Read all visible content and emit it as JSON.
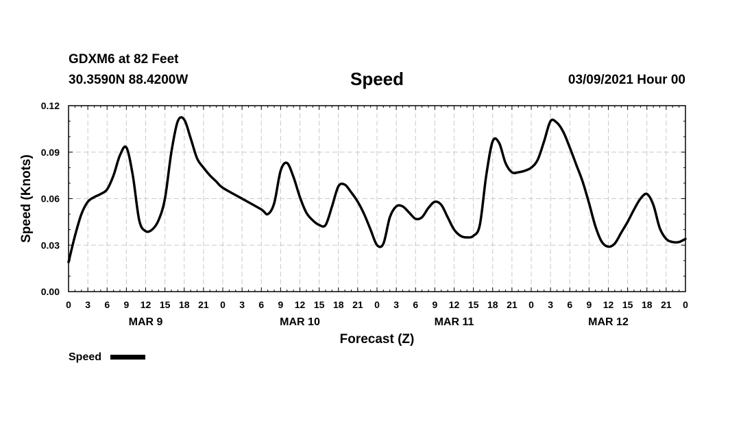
{
  "header": {
    "station": "GDXM6 at 82 Feet",
    "coords": "30.3590N 88.4200W",
    "title": "Speed",
    "date": "03/09/2021 Hour 00"
  },
  "chart_data": {
    "type": "line",
    "title": "Speed",
    "xlabel": "Forecast (Z)",
    "ylabel": "Speed (Knots)",
    "ylim": [
      0,
      0.12
    ],
    "y_ticks": [
      "0.00",
      "0.03",
      "0.06",
      "0.09",
      "0.12"
    ],
    "x_range_hours": [
      0,
      96
    ],
    "x_tick_labels": [
      "0",
      "3",
      "6",
      "9",
      "12",
      "15",
      "18",
      "21",
      "0",
      "3",
      "6",
      "9",
      "12",
      "15",
      "18",
      "21",
      "0",
      "3",
      "6",
      "9",
      "12",
      "15",
      "18",
      "21",
      "0",
      "3",
      "6",
      "9",
      "12",
      "15",
      "18",
      "21",
      "0"
    ],
    "day_labels": [
      {
        "hour": 12,
        "label": "MAR 9"
      },
      {
        "hour": 36,
        "label": "MAR 10"
      },
      {
        "hour": 60,
        "label": "MAR 11"
      },
      {
        "hour": 84,
        "label": "MAR 12"
      }
    ],
    "grid": true,
    "legend_position": "bottom-left",
    "series": [
      {
        "name": "Speed",
        "color": "#000000",
        "points": [
          [
            0,
            0.019
          ],
          [
            1,
            0.036
          ],
          [
            2,
            0.05
          ],
          [
            3,
            0.058
          ],
          [
            4,
            0.061
          ],
          [
            5,
            0.063
          ],
          [
            6,
            0.066
          ],
          [
            7,
            0.075
          ],
          [
            8,
            0.088
          ],
          [
            9,
            0.093
          ],
          [
            10,
            0.075
          ],
          [
            11,
            0.046
          ],
          [
            12,
            0.039
          ],
          [
            13,
            0.04
          ],
          [
            14,
            0.046
          ],
          [
            15,
            0.06
          ],
          [
            16,
            0.09
          ],
          [
            17,
            0.11
          ],
          [
            18,
            0.111
          ],
          [
            19,
            0.099
          ],
          [
            20,
            0.086
          ],
          [
            21,
            0.08
          ],
          [
            22,
            0.075
          ],
          [
            23,
            0.071
          ],
          [
            24,
            0.067
          ],
          [
            27,
            0.06
          ],
          [
            30,
            0.053
          ],
          [
            31,
            0.05
          ],
          [
            32,
            0.057
          ],
          [
            33,
            0.078
          ],
          [
            34,
            0.083
          ],
          [
            35,
            0.074
          ],
          [
            36,
            0.061
          ],
          [
            37,
            0.051
          ],
          [
            38,
            0.046
          ],
          [
            39,
            0.043
          ],
          [
            40,
            0.043
          ],
          [
            41,
            0.055
          ],
          [
            42,
            0.068
          ],
          [
            43,
            0.069
          ],
          [
            44,
            0.064
          ],
          [
            45,
            0.058
          ],
          [
            46,
            0.05
          ],
          [
            47,
            0.04
          ],
          [
            48,
            0.03
          ],
          [
            49,
            0.031
          ],
          [
            50,
            0.048
          ],
          [
            51,
            0.055
          ],
          [
            52,
            0.055
          ],
          [
            53,
            0.051
          ],
          [
            54,
            0.047
          ],
          [
            55,
            0.048
          ],
          [
            56,
            0.054
          ],
          [
            57,
            0.058
          ],
          [
            58,
            0.056
          ],
          [
            59,
            0.048
          ],
          [
            60,
            0.04
          ],
          [
            61,
            0.036
          ],
          [
            62,
            0.035
          ],
          [
            63,
            0.036
          ],
          [
            64,
            0.043
          ],
          [
            65,
            0.075
          ],
          [
            66,
            0.097
          ],
          [
            67,
            0.096
          ],
          [
            68,
            0.083
          ],
          [
            69,
            0.077
          ],
          [
            70,
            0.077
          ],
          [
            71,
            0.078
          ],
          [
            72,
            0.08
          ],
          [
            73,
            0.085
          ],
          [
            74,
            0.097
          ],
          [
            75,
            0.11
          ],
          [
            76,
            0.109
          ],
          [
            77,
            0.103
          ],
          [
            78,
            0.093
          ],
          [
            79,
            0.082
          ],
          [
            80,
            0.071
          ],
          [
            81,
            0.057
          ],
          [
            82,
            0.042
          ],
          [
            83,
            0.032
          ],
          [
            84,
            0.029
          ],
          [
            85,
            0.031
          ],
          [
            86,
            0.038
          ],
          [
            87,
            0.045
          ],
          [
            88,
            0.053
          ],
          [
            89,
            0.06
          ],
          [
            90,
            0.063
          ],
          [
            91,
            0.056
          ],
          [
            92,
            0.041
          ],
          [
            93,
            0.034
          ],
          [
            94,
            0.032
          ],
          [
            95,
            0.032
          ],
          [
            96,
            0.034
          ]
        ]
      }
    ],
    "legend": [
      {
        "label": "Speed",
        "color": "#000000"
      }
    ]
  }
}
